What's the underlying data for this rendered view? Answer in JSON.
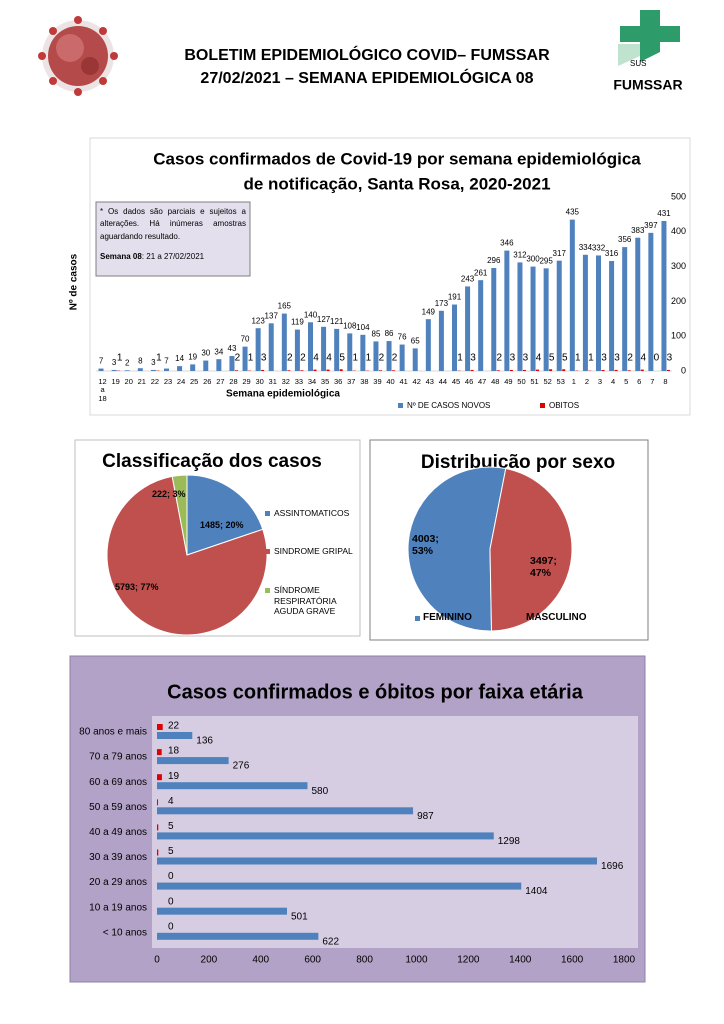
{
  "header": {
    "title_line1": "BOLETIM EPIDEMIOLÓGICO COVID– FUMSSAR",
    "title_line2": "27/02/2021 – SEMANA EPIDEMIOLÓGICA 08",
    "logo_sus": "SUS",
    "logo_name": "FUMSSAR"
  },
  "chart_data": [
    {
      "type": "bar",
      "title": [
        "Casos confirmados de Covid-19 por semana epidemiológica",
        "de notificação, Santa Rosa, 2020-2021"
      ],
      "x_label": "Semana epidemiológica",
      "y_label": "Nº de casos",
      "y_axis_side": "right",
      "annotation": {
        "note": "* Os dados são parciais e sujeitos a alterações. Há inúmeras amostras aguardando resultado.",
        "week_label": "Semana  08",
        "week_dates": ": 21 a 27/02/2021"
      },
      "categories": [
        "12 a 18",
        "19",
        "20",
        "21",
        "22",
        "23",
        "24",
        "25",
        "26",
        "27",
        "28",
        "29",
        "30",
        "31",
        "32",
        "33",
        "34",
        "35",
        "36",
        "37",
        "38",
        "39",
        "40",
        "41",
        "42",
        "43",
        "44",
        "45",
        "46",
        "47",
        "48",
        "49",
        "50",
        "51",
        "52",
        "53",
        "1",
        "2",
        "3",
        "4",
        "5",
        "6",
        "7",
        "8"
      ],
      "series": [
        {
          "name": "Nº DE CASOS NOVOS",
          "color": "#4f81bd",
          "values": [
            7,
            3,
            2,
            8,
            3,
            7,
            14,
            19,
            30,
            34,
            43,
            70,
            123,
            137,
            165,
            119,
            140,
            127,
            121,
            108,
            104,
            85,
            86,
            76,
            65,
            149,
            173,
            191,
            243,
            261,
            296,
            346,
            312,
            300,
            295,
            317,
            435,
            334,
            332,
            316,
            356,
            383,
            397,
            431
          ]
        },
        {
          "name": "OBITOS",
          "color": "#e00000",
          "values": [
            null,
            1,
            null,
            null,
            1,
            null,
            null,
            null,
            null,
            null,
            2,
            1,
            3,
            null,
            2,
            2,
            4,
            4,
            5,
            1,
            1,
            2,
            2,
            null,
            null,
            null,
            null,
            1,
            3,
            null,
            2,
            3,
            3,
            4,
            5,
            5,
            1,
            1,
            3,
            3,
            2,
            4,
            0,
            3
          ]
        }
      ],
      "ylim": [
        0,
        500
      ],
      "yticks": [
        0,
        100,
        200,
        300,
        400,
        500
      ],
      "grid": false,
      "legend": "bottom"
    },
    {
      "type": "pie",
      "title": "Classificação dos casos",
      "categories": [
        "ASSINTOMATICOS",
        "SINDROME GRIPAL",
        "SÍNDROME RESPIRATÓRIA AGUDA GRAVE"
      ],
      "values": [
        1485,
        5793,
        222
      ],
      "value_labels": [
        "1485; 20%",
        "5793; 77%",
        "222; 3%"
      ],
      "colors": [
        "#4f81bd",
        "#c0504d",
        "#9bbb59"
      ],
      "legend": "right"
    },
    {
      "type": "pie",
      "title": "Distribuição por sexo",
      "categories": [
        "FEMININO",
        "MASCULINO"
      ],
      "values": [
        4003,
        3497
      ],
      "value_labels": [
        "4003; 53%",
        "3497; 47%"
      ],
      "colors": [
        "#4f81bd",
        "#c0504d"
      ],
      "legend": "bottom"
    },
    {
      "type": "hbar",
      "title": "Casos confirmados e óbitos  por faixa etária",
      "categories": [
        "80 anos e mais",
        "70 a 79 anos",
        "60 a 69 anos",
        "50 a 59 anos",
        "40 a 49 anos",
        "30 a 39 anos",
        "20 a 29 anos",
        "10 a 19 anos",
        "< 10 anos"
      ],
      "series": [
        {
          "color": "#4f81bd",
          "values": [
            136,
            276,
            580,
            987,
            1298,
            1696,
            1404,
            501,
            622
          ]
        },
        {
          "color": "#e00000",
          "values": [
            22,
            18,
            19,
            4,
            5,
            5,
            0,
            0,
            0
          ]
        }
      ],
      "xlim": [
        0,
        1800
      ],
      "xticks": [
        0,
        200,
        400,
        600,
        800,
        1000,
        1200,
        1400,
        1600,
        1800
      ],
      "grid": false
    }
  ]
}
